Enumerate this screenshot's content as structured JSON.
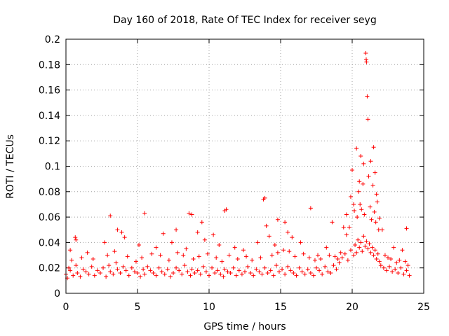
{
  "chart_data": {
    "type": "scatter",
    "title": "Day 160 of 2018, Rate Of TEC Index for receiver seyg",
    "xlabel": "GPS time / hours",
    "ylabel": "ROTI / TECUs",
    "xlim": [
      0,
      25
    ],
    "ylim": [
      0,
      0.2
    ],
    "xticks": [
      0,
      5,
      10,
      15,
      20,
      25
    ],
    "xtick_labels": [
      "0",
      "5",
      "10",
      "15",
      "20",
      "25"
    ],
    "yticks": [
      0,
      0.02,
      0.04,
      0.06,
      0.08,
      0.1,
      0.12,
      0.14,
      0.16,
      0.18,
      0.2
    ],
    "ytick_labels": [
      "0",
      "0.02",
      "0.04",
      "0.06",
      "0.08",
      "0.1",
      "0.12",
      "0.14",
      "0.16",
      "0.18",
      "0.2"
    ],
    "grid": true,
    "marker": "+",
    "color": "#ff0000",
    "series": [
      {
        "name": "ROTI",
        "x": [
          0.0,
          0.1,
          0.2,
          0.3,
          0.5,
          0.7,
          0.8,
          1.0,
          1.2,
          1.4,
          1.6,
          1.8,
          2.0,
          2.2,
          2.4,
          2.6,
          2.8,
          3.0,
          3.1,
          3.3,
          3.5,
          3.6,
          3.8,
          4.0,
          4.2,
          4.4,
          4.6,
          4.8,
          5.0,
          5.2,
          5.4,
          5.5,
          5.7,
          5.9,
          6.1,
          6.3,
          6.5,
          6.7,
          6.9,
          7.1,
          7.3,
          7.5,
          7.7,
          7.9,
          8.1,
          8.3,
          8.5,
          8.7,
          8.8,
          9.0,
          9.2,
          9.4,
          9.6,
          9.8,
          10.0,
          10.2,
          10.4,
          10.6,
          10.8,
          11.0,
          11.1,
          11.3,
          11.5,
          11.7,
          11.9,
          12.1,
          12.3,
          12.5,
          12.7,
          12.9,
          13.1,
          13.3,
          13.5,
          13.7,
          13.9,
          14.1,
          14.3,
          14.5,
          14.7,
          14.9,
          15.1,
          15.3,
          15.5,
          15.7,
          15.9,
          16.1,
          16.3,
          16.5,
          16.7,
          16.9,
          17.1,
          17.3,
          17.5,
          17.7,
          17.9,
          18.1,
          18.3,
          18.5,
          18.7,
          18.9,
          19.1,
          19.3,
          19.5,
          19.7,
          19.9,
          20.1,
          20.2,
          20.3,
          20.4,
          20.5,
          20.6,
          20.7,
          20.8,
          20.9,
          21.0,
          21.1,
          21.2,
          21.3,
          21.4,
          21.5,
          21.6,
          21.7,
          21.8,
          21.9,
          22.0,
          22.2,
          22.4,
          22.6,
          22.8,
          23.0,
          23.2,
          23.4,
          23.6,
          23.8,
          24.0,
          0.65,
          0.7,
          3.1,
          3.6,
          3.9,
          5.5,
          6.8,
          7.7,
          8.6,
          8.8,
          9.2,
          9.5,
          10.3,
          11.1,
          11.2,
          13.8,
          13.9,
          14.0,
          14.2,
          14.8,
          15.3,
          15.5,
          17.1,
          18.6,
          19.6,
          19.9,
          20.0,
          20.3,
          20.5,
          20.6,
          20.8,
          20.95,
          20.98,
          21.0,
          21.05,
          21.1,
          21.3,
          21.5,
          21.6,
          21.7,
          21.9,
          23.8,
          0.3,
          1.5,
          2.7,
          4.1,
          5.1,
          6.3,
          7.4,
          8.4,
          9.7,
          10.7,
          11.8,
          12.4,
          13.4,
          14.6,
          15.8,
          16.4,
          17.6,
          18.2,
          19.4,
          20.1,
          20.45,
          20.75,
          21.15,
          21.45,
          21.75,
          22.1,
          22.9,
          23.5,
          0.4,
          1.1,
          1.9,
          2.9,
          3.4,
          4.3,
          4.9,
          5.3,
          6.0,
          6.6,
          7.2,
          7.8,
          8.2,
          8.9,
          9.3,
          9.9,
          10.5,
          10.9,
          11.4,
          12.0,
          12.6,
          13.0,
          13.6,
          14.4,
          14.8,
          15.2,
          15.6,
          16.0,
          16.6,
          17.0,
          17.4,
          17.8,
          18.4,
          18.8,
          19.0,
          19.2,
          19.6,
          19.8,
          20.15,
          20.35,
          20.55,
          20.65,
          20.85,
          21.25,
          21.35,
          21.55,
          21.65,
          21.85,
          22.3,
          22.5,
          22.7,
          23.1,
          23.3,
          23.7,
          23.9
        ],
        "y": [
          0.015,
          0.012,
          0.02,
          0.018,
          0.014,
          0.022,
          0.016,
          0.013,
          0.019,
          0.017,
          0.015,
          0.021,
          0.014,
          0.018,
          0.016,
          0.02,
          0.013,
          0.022,
          0.017,
          0.015,
          0.024,
          0.019,
          0.016,
          0.021,
          0.018,
          0.014,
          0.02,
          0.017,
          0.016,
          0.013,
          0.019,
          0.015,
          0.021,
          0.018,
          0.016,
          0.014,
          0.02,
          0.017,
          0.015,
          0.019,
          0.013,
          0.016,
          0.02,
          0.018,
          0.015,
          0.022,
          0.017,
          0.014,
          0.019,
          0.016,
          0.018,
          0.015,
          0.021,
          0.017,
          0.014,
          0.02,
          0.016,
          0.018,
          0.015,
          0.013,
          0.019,
          0.017,
          0.016,
          0.02,
          0.014,
          0.018,
          0.015,
          0.017,
          0.021,
          0.016,
          0.014,
          0.019,
          0.017,
          0.015,
          0.02,
          0.016,
          0.018,
          0.014,
          0.022,
          0.017,
          0.019,
          0.015,
          0.021,
          0.018,
          0.016,
          0.014,
          0.02,
          0.017,
          0.015,
          0.019,
          0.016,
          0.014,
          0.02,
          0.018,
          0.015,
          0.021,
          0.017,
          0.016,
          0.022,
          0.019,
          0.024,
          0.028,
          0.031,
          0.026,
          0.034,
          0.03,
          0.038,
          0.032,
          0.042,
          0.036,
          0.04,
          0.033,
          0.045,
          0.037,
          0.041,
          0.035,
          0.039,
          0.032,
          0.036,
          0.03,
          0.034,
          0.027,
          0.031,
          0.025,
          0.022,
          0.02,
          0.018,
          0.021,
          0.017,
          0.019,
          0.016,
          0.02,
          0.015,
          0.018,
          0.014,
          0.044,
          0.042,
          0.061,
          0.05,
          0.048,
          0.063,
          0.047,
          0.05,
          0.063,
          0.062,
          0.048,
          0.056,
          0.046,
          0.065,
          0.066,
          0.074,
          0.075,
          0.053,
          0.045,
          0.058,
          0.056,
          0.048,
          0.067,
          0.056,
          0.062,
          0.076,
          0.097,
          0.114,
          0.088,
          0.108,
          0.102,
          0.189,
          0.184,
          0.182,
          0.155,
          0.137,
          0.104,
          0.115,
          0.095,
          0.078,
          0.059,
          0.051,
          0.034,
          0.032,
          0.04,
          0.044,
          0.038,
          0.036,
          0.04,
          0.035,
          0.042,
          0.038,
          0.036,
          0.034,
          0.04,
          0.038,
          0.044,
          0.04,
          0.03,
          0.036,
          0.052,
          0.07,
          0.08,
          0.086,
          0.092,
          0.085,
          0.072,
          0.05,
          0.036,
          0.034,
          0.026,
          0.028,
          0.027,
          0.03,
          0.033,
          0.029,
          0.025,
          0.028,
          0.031,
          0.03,
          0.026,
          0.032,
          0.03,
          0.027,
          0.029,
          0.031,
          0.028,
          0.025,
          0.03,
          0.027,
          0.029,
          0.026,
          0.028,
          0.03,
          0.032,
          0.034,
          0.033,
          0.029,
          0.031,
          0.028,
          0.026,
          0.027,
          0.03,
          0.029,
          0.027,
          0.032,
          0.046,
          0.052,
          0.065,
          0.06,
          0.07,
          0.066,
          0.062,
          0.068,
          0.058,
          0.064,
          0.056,
          0.05,
          0.03,
          0.028,
          0.027,
          0.024,
          0.026,
          0.025,
          0.022
        ]
      }
    ]
  }
}
